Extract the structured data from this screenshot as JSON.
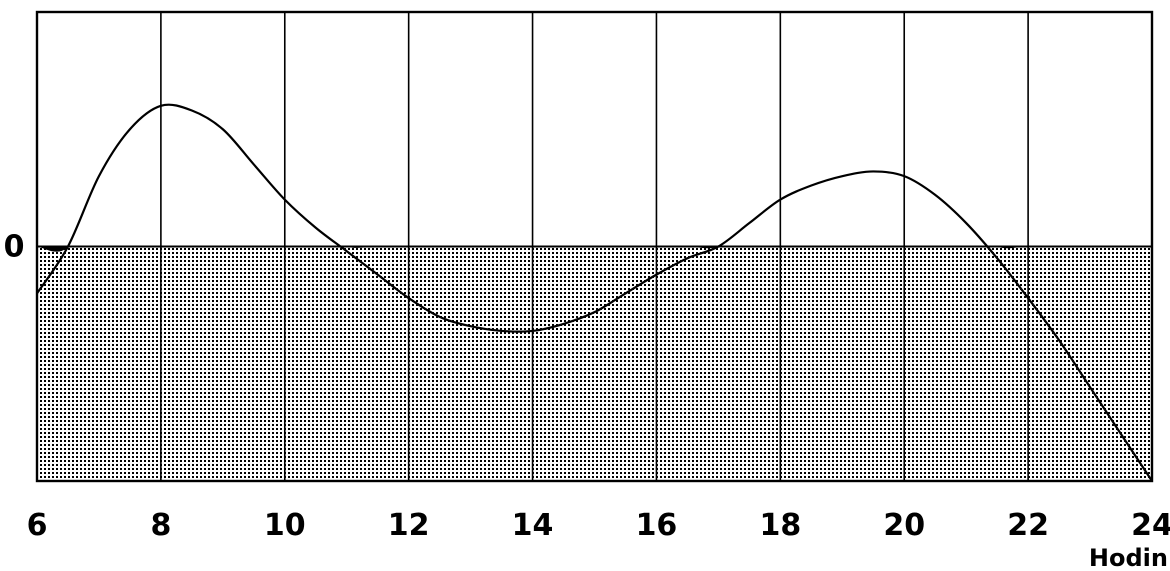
{
  "chart_data": {
    "type": "area",
    "title": "",
    "xlabel": "Hodin",
    "ylabel": "",
    "xlim": [
      6,
      24
    ],
    "ylim": [
      -1.0,
      1.0
    ],
    "x_ticks": [
      6,
      8,
      10,
      12,
      14,
      16,
      18,
      20,
      22,
      24
    ],
    "x_tick_labels": [
      "6",
      "8",
      "10",
      "12",
      "14",
      "16",
      "18",
      "20",
      "22",
      "24"
    ],
    "y_tick_labels": [
      "0"
    ],
    "grid": true,
    "series": [
      {
        "x": [
          6.0,
          6.5,
          7.0,
          7.5,
          8.0,
          8.5,
          9.0,
          9.5,
          10.0,
          10.5,
          11.0,
          11.5,
          12.0,
          12.5,
          13.0,
          13.5,
          14.0,
          14.5,
          15.0,
          15.5,
          16.0,
          16.5,
          17.0,
          17.5,
          18.0,
          18.5,
          19.0,
          19.5,
          20.0,
          20.5,
          21.0,
          21.5,
          22.0,
          22.5,
          23.0,
          23.5,
          24.0
        ],
        "y": [
          -0.2,
          0.0,
          0.3,
          0.5,
          0.6,
          0.58,
          0.5,
          0.35,
          0.2,
          0.08,
          -0.02,
          -0.12,
          -0.22,
          -0.3,
          -0.34,
          -0.36,
          -0.36,
          -0.33,
          -0.28,
          -0.2,
          -0.12,
          -0.05,
          0.0,
          0.1,
          0.2,
          0.26,
          0.3,
          0.32,
          0.3,
          0.22,
          0.1,
          -0.05,
          -0.22,
          -0.4,
          -0.6,
          -0.8,
          -1.0
        ]
      }
    ],
    "fill_below": "dotted",
    "fill_between_zero": "black"
  }
}
